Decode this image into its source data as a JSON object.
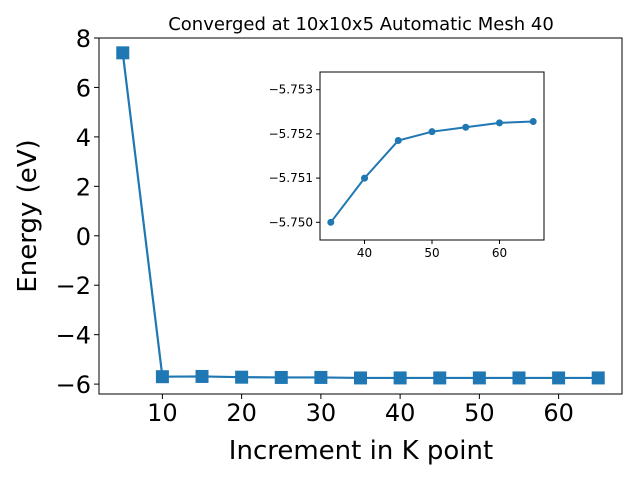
{
  "chart_data": [
    {
      "type": "line",
      "title": "Converged at 10x10x5 Automatic Mesh 40",
      "xlabel": "Increment in K point",
      "ylabel": "Energy (eV)",
      "xlim": [
        2,
        68
      ],
      "ylim": [
        -6.4,
        8.0
      ],
      "xticks": [
        10,
        20,
        30,
        40,
        50,
        60
      ],
      "xtick_labels": [
        "10",
        "20",
        "30",
        "40",
        "50",
        "60"
      ],
      "yticks": [
        -6,
        -4,
        -2,
        0,
        2,
        4,
        6,
        8
      ],
      "ytick_labels": [
        "−6",
        "−4",
        "−2",
        "0",
        "2",
        "4",
        "6",
        "8"
      ],
      "grid": false,
      "marker": "square",
      "series": [
        {
          "color": "#1f77b4",
          "x": [
            5,
            10,
            15,
            20,
            25,
            30,
            35,
            40,
            45,
            50,
            55,
            60,
            65
          ],
          "y": [
            7.4,
            -5.7,
            -5.69,
            -5.72,
            -5.73,
            -5.73,
            -5.75,
            -5.75,
            -5.75,
            -5.75,
            -5.75,
            -5.75,
            -5.75
          ]
        }
      ]
    },
    {
      "type": "line",
      "title": "",
      "xlabel": "",
      "ylabel": "",
      "xlim": [
        33.4,
        66.6
      ],
      "ylim": [
        -5.7496,
        -5.7534
      ],
      "y_inverted": true,
      "xticks": [
        40,
        50,
        60
      ],
      "xtick_labels": [
        "40",
        "50",
        "60"
      ],
      "yticks": [
        -5.75,
        -5.751,
        -5.752,
        -5.753
      ],
      "ytick_labels": [
        "−5.750",
        "−5.751",
        "−5.752",
        "−5.753"
      ],
      "grid": false,
      "marker": "circle",
      "series": [
        {
          "color": "#1f77b4",
          "x": [
            35,
            40,
            45,
            50,
            55,
            60,
            65
          ],
          "y": [
            -5.75,
            -5.751,
            -5.75185,
            -5.75205,
            -5.75215,
            -5.75225,
            -5.75228
          ]
        }
      ]
    }
  ]
}
